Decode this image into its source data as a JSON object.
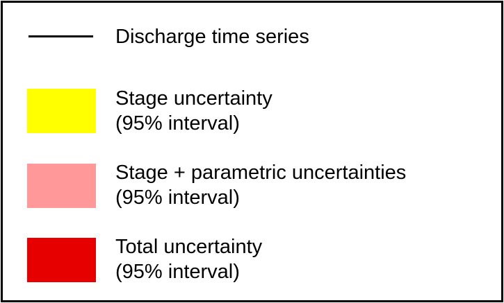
{
  "legend": {
    "line_entry": {
      "label": "Discharge time series",
      "color": "#000000"
    },
    "entries": [
      {
        "line1": "Stage uncertainty",
        "line2": "(95% interval)",
        "color": "#ffff00"
      },
      {
        "line1": "Stage + parametric uncertainties",
        "line2": "(95% interval)",
        "color": "#ff9999"
      },
      {
        "line1": "Total uncertainty",
        "line2": "(95% interval)",
        "color": "#e60000"
      }
    ]
  }
}
